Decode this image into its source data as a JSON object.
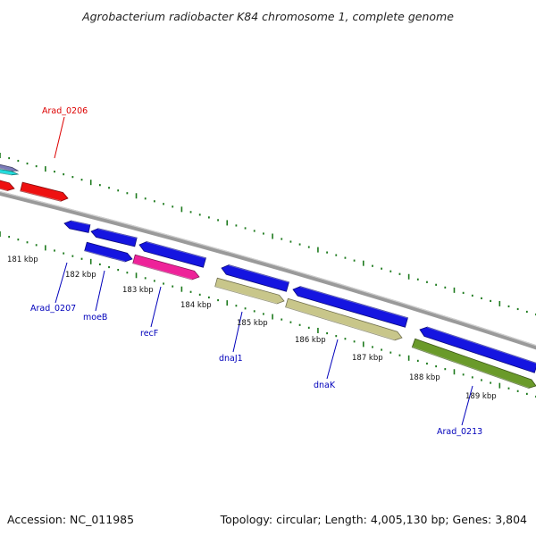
{
  "title": "Agrobacterium radiobacter K84 chromosome 1, complete genome",
  "footer": {
    "accession": "Accession: NC_011985",
    "summary": "Topology: circular; Length: 4,005,130 bp; Genes: 3,804"
  },
  "colors": {
    "backbone": "#8a8a8a",
    "tick": "#1d7a1d",
    "blue_gene": "#1515e0",
    "red_gene": "#ee1111",
    "magenta_gene": "#ee2299",
    "khaki_gene": "#c8c68a",
    "olive_gene": "#6a9a2a",
    "label_blue": "#0000bb",
    "label_red": "#dd0000"
  },
  "kbp_labels": [
    "181 kbp",
    "182 kbp",
    "183 kbp",
    "184 kbp",
    "185 kbp",
    "186 kbp",
    "187 kbp",
    "188 kbp",
    "189 kbp"
  ],
  "gene_labels": [
    {
      "name": "Arad_0206",
      "color": "red"
    },
    {
      "name": "Arad_0207",
      "color": "blue"
    },
    {
      "name": "moeB",
      "color": "blue"
    },
    {
      "name": "recF",
      "color": "blue"
    },
    {
      "name": "dnaJ1",
      "color": "blue"
    },
    {
      "name": "dnaK",
      "color": "blue"
    },
    {
      "name": "Arad_0213",
      "color": "blue"
    }
  ]
}
